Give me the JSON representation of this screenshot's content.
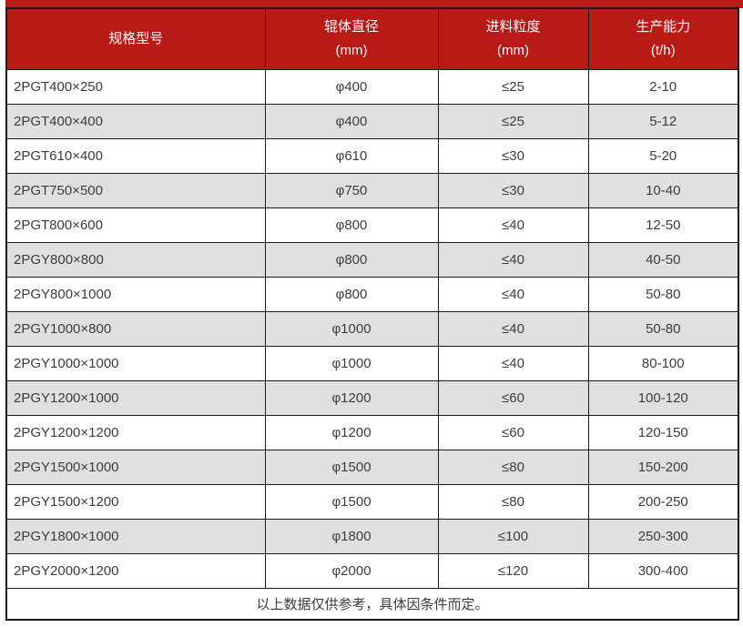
{
  "colors": {
    "header_red": "#b81a16",
    "alt_row_gray": "#e0e0e0",
    "border_black": "#1a1a1a",
    "body_text": "#3d3d3d",
    "header_text": "#ffffff"
  },
  "table": {
    "headers": [
      {
        "title": "规格型号",
        "unit": ""
      },
      {
        "title": "辊体直径",
        "unit": "(mm)"
      },
      {
        "title": "进料粒度",
        "unit": "(mm)"
      },
      {
        "title": "生产能力",
        "unit": "(t/h)"
      }
    ],
    "rows": [
      [
        "2PGT400×250",
        "φ400",
        "≤25",
        "2-10"
      ],
      [
        "2PGT400×400",
        "φ400",
        "≤25",
        "5-12"
      ],
      [
        "2PGT610×400",
        "φ610",
        "≤30",
        "5-20"
      ],
      [
        "2PGT750×500",
        "φ750",
        "≤30",
        "10-40"
      ],
      [
        "2PGT800×600",
        "φ800",
        "≤40",
        "12-50"
      ],
      [
        "2PGY800×800",
        "φ800",
        "≤40",
        "40-50"
      ],
      [
        "2PGY800×1000",
        "φ800",
        "≤40",
        "50-80"
      ],
      [
        "2PGY1000×800",
        "φ1000",
        "≤40",
        "50-80"
      ],
      [
        "2PGY1000×1000",
        "φ1000",
        "≤40",
        "80-100"
      ],
      [
        "2PGY1200×1000",
        "φ1200",
        "≤60",
        "100-120"
      ],
      [
        "2PGY1200×1200",
        "φ1200",
        "≤60",
        "120-150"
      ],
      [
        "2PGY1500×1000",
        "φ1500",
        "≤80",
        "150-200"
      ],
      [
        "2PGY1500×1200",
        "φ1500",
        "≤80",
        "200-250"
      ],
      [
        "2PGY1800×1000",
        "φ1800",
        "≤100",
        "250-300"
      ],
      [
        "2PGY2000×1200",
        "φ2000",
        "≤120",
        "300-400"
      ]
    ],
    "footnote": "以上数据仅供参考，具体因条件而定。"
  }
}
